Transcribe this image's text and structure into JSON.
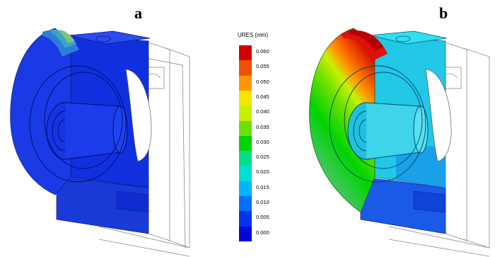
{
  "panels": [
    {
      "label": "a"
    },
    {
      "label": "b"
    }
  ],
  "legend": {
    "title": "URES (mm)",
    "ticks": [
      "0.060",
      "0.055",
      "0.050",
      "0.045",
      "0.040",
      "0.035",
      "0.030",
      "0.025",
      "0.020",
      "0.015",
      "0.010",
      "0.005",
      "0.000"
    ],
    "colors": [
      "#d00000",
      "#f05000",
      "#ff9800",
      "#f4e600",
      "#c8f000",
      "#6ce000",
      "#00d400",
      "#00e08c",
      "#00e0d0",
      "#00b4ff",
      "#0070ff",
      "#0034f0",
      "#0008d8"
    ]
  }
}
